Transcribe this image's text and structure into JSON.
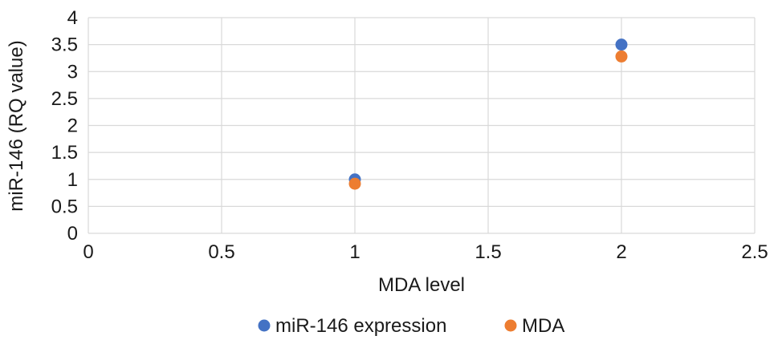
{
  "chart_data": {
    "type": "scatter",
    "title": "",
    "xlabel": "MDA level",
    "ylabel": "miR-146 (RQ value)",
    "xlim": [
      0,
      2.5
    ],
    "ylim": [
      0,
      4
    ],
    "x_ticks": [
      "0",
      "0.5",
      "1",
      "1.5",
      "2",
      "2.5"
    ],
    "y_ticks": [
      "0",
      "0.5",
      "1",
      "1.5",
      "2",
      "2.5",
      "3",
      "3.5",
      "4"
    ],
    "grid": true,
    "legend_position": "bottom",
    "series": [
      {
        "name": "miR-146 expression",
        "color": "#4472C4",
        "points": [
          {
            "x": 1,
            "y": 1.0
          },
          {
            "x": 2,
            "y": 3.5
          }
        ]
      },
      {
        "name": "MDA",
        "color": "#ED7D31",
        "points": [
          {
            "x": 1,
            "y": 0.92
          },
          {
            "x": 2,
            "y": 3.28
          }
        ]
      }
    ]
  }
}
